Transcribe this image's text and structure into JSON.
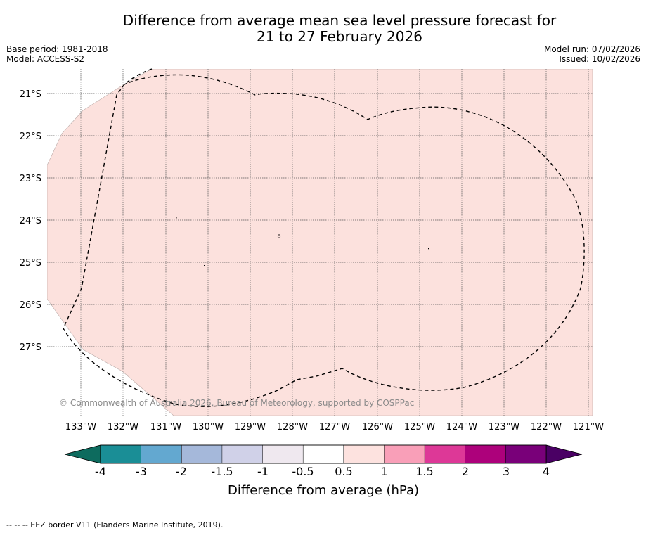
{
  "title_line1": "Difference from average mean sea level pressure forecast for",
  "title_line2": "21 to 27 February 2026",
  "base_period": "Base period: 1981-2018",
  "model": "Model: ACCESS-S2",
  "model_run": "Model run: 07/02/2026",
  "issued": "Issued: 10/02/2026",
  "copyright": "© Commonwealth of Australia 2026, Bureau of Meteorology, supported by COSPPac",
  "footnote": "--  --  -- EEZ border V11 (Flanders Marine Institute, 2019).",
  "map": {
    "fill_color": "#fce1dd",
    "eez_color": "#000000",
    "lat_labels": [
      "21°S",
      "22°S",
      "23°S",
      "24°S",
      "25°S",
      "26°S",
      "27°S"
    ],
    "lon_labels": [
      "133°W",
      "132°W",
      "131°W",
      "130°W",
      "129°W",
      "128°W",
      "127°W",
      "126°W",
      "125°W",
      "124°W",
      "123°W",
      "122°W",
      "121°W"
    ],
    "forecast_category": "0.5 to 1"
  },
  "colorbar": {
    "title": "Difference from average (hPa)",
    "ticks": [
      "-4",
      "-3",
      "-2",
      "-1.5",
      "-1",
      "-0.5",
      "0.5",
      "1",
      "1.5",
      "2",
      "3",
      "4"
    ],
    "colors": [
      "#1a8e96",
      "#63a8d0",
      "#a5b8da",
      "#d0d1e8",
      "#efe8ef",
      "#ffffff",
      "#fde2df",
      "#f99fb8",
      "#dd3897",
      "#ad017b",
      "#790079"
    ],
    "under_color": "#0d6b5e",
    "over_color": "#4a0064"
  }
}
